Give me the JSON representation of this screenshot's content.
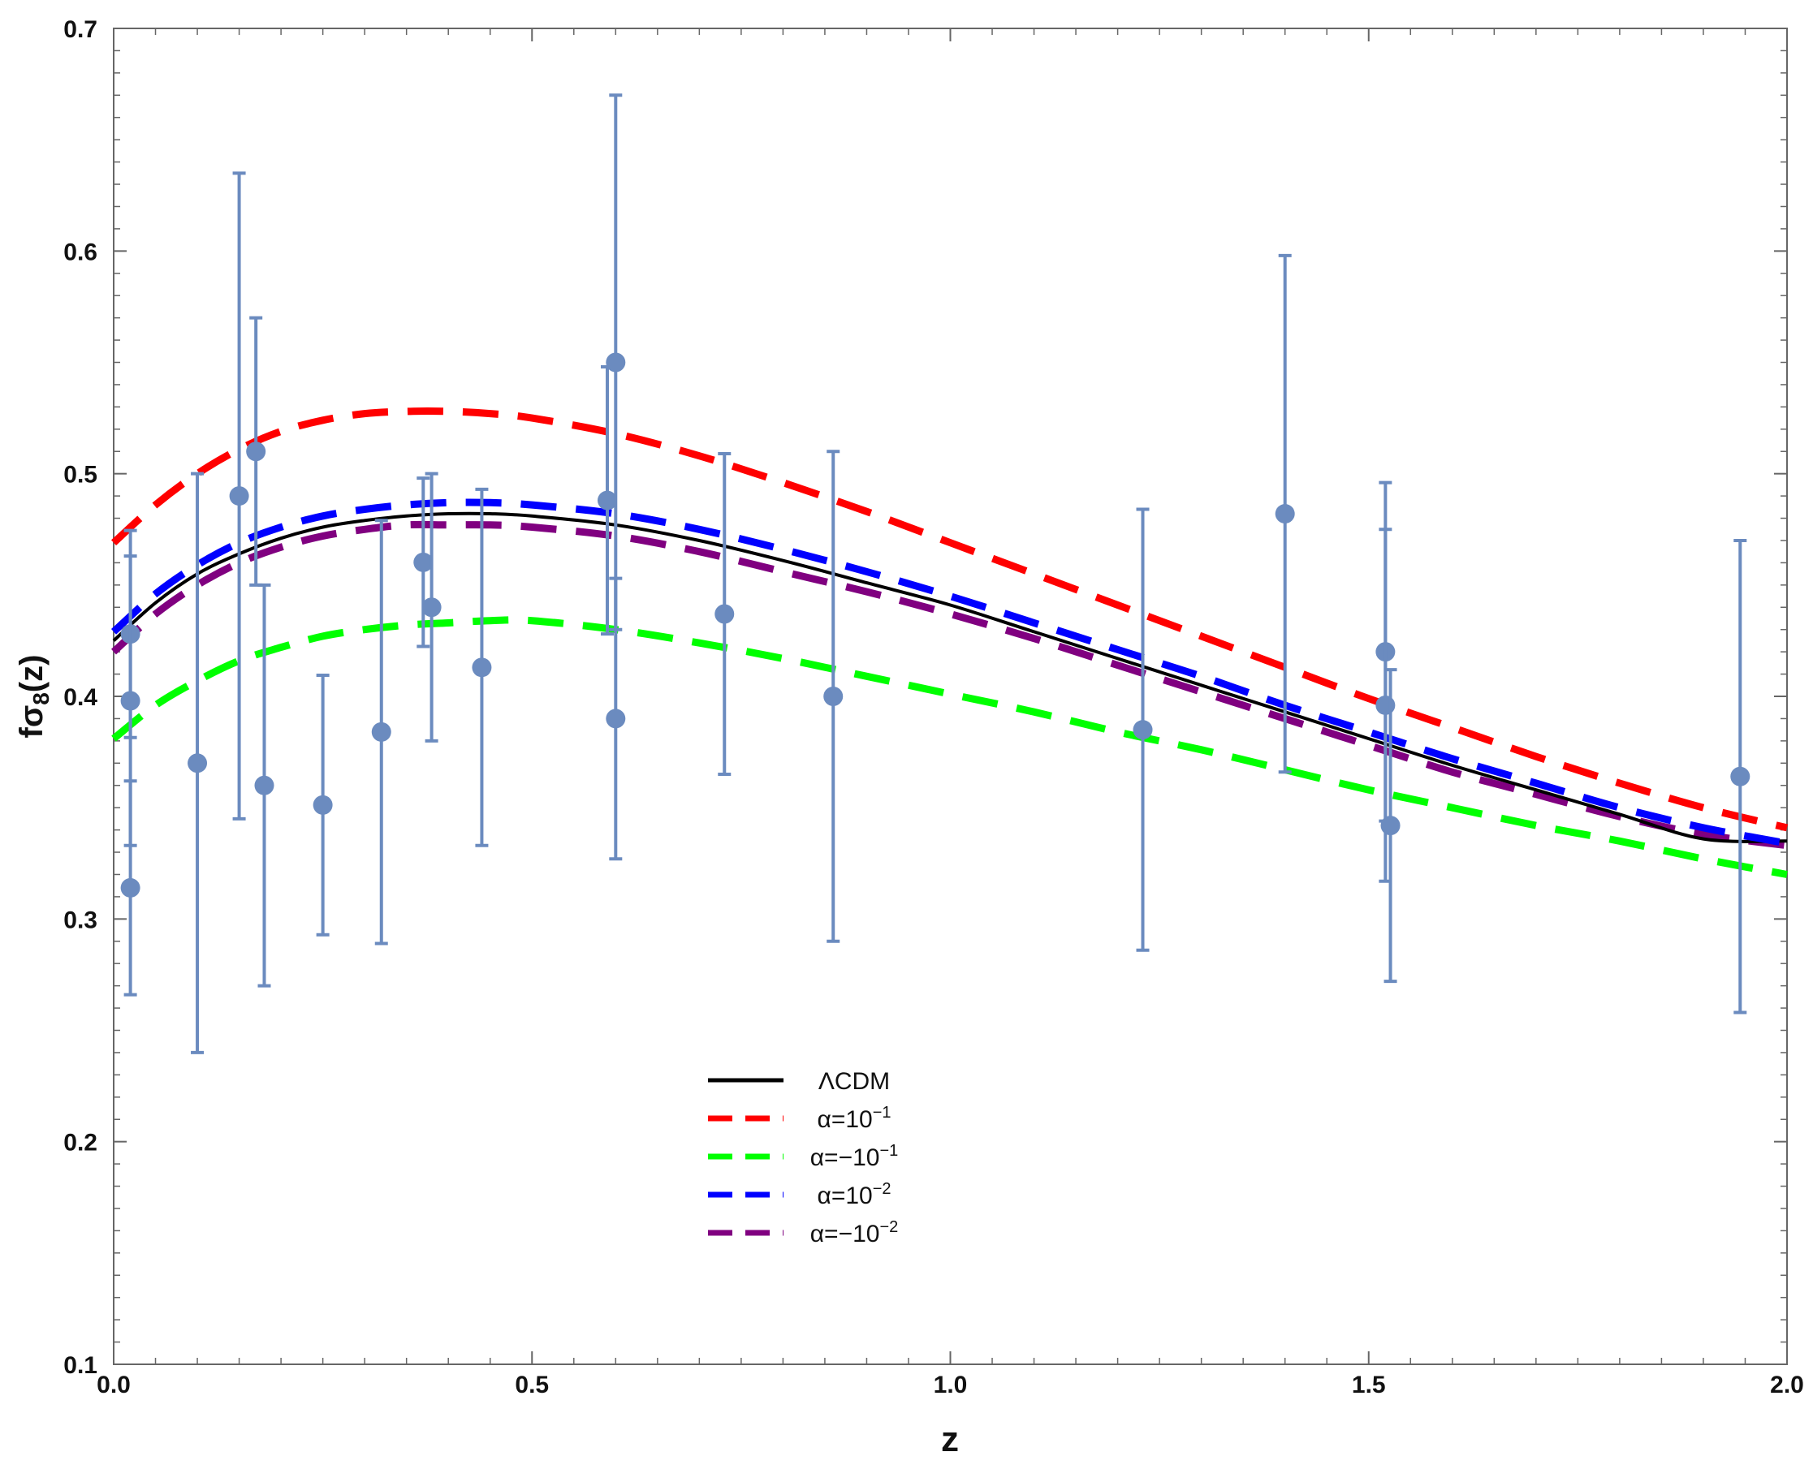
{
  "chart_data": {
    "type": "scatter",
    "title": "",
    "xlabel": "z",
    "ylabel": "fσ8(z)",
    "ylabel_parts": {
      "main": "fσ",
      "sub": "8",
      "tail": "(z)"
    },
    "xlim": [
      0.0,
      2.0
    ],
    "ylim": [
      0.1,
      0.7
    ],
    "x_ticks": [
      0.0,
      0.5,
      1.0,
      1.5,
      2.0
    ],
    "x_tick_labels": [
      "0.0",
      "0.5",
      "1.0",
      "1.5",
      "2.0"
    ],
    "y_ticks": [
      0.1,
      0.2,
      0.3,
      0.4,
      0.5,
      0.6,
      0.7
    ],
    "y_tick_labels": [
      "0.1",
      "0.2",
      "0.3",
      "0.4",
      "0.5",
      "0.6",
      "0.7"
    ],
    "grid": false,
    "legend_position": "lower-center",
    "data_points": {
      "name": "observations",
      "color": "#6b8bbf",
      "points": [
        {
          "z": 0.02,
          "value": 0.428,
          "err": 0.0465
        },
        {
          "z": 0.02,
          "value": 0.398,
          "err": 0.065
        },
        {
          "z": 0.02,
          "value": 0.314,
          "err": 0.048
        },
        {
          "z": 0.1,
          "value": 0.37,
          "err": 0.13
        },
        {
          "z": 0.15,
          "value": 0.49,
          "err": 0.145
        },
        {
          "z": 0.17,
          "value": 0.51,
          "err": 0.06
        },
        {
          "z": 0.18,
          "value": 0.36,
          "err": 0.09
        },
        {
          "z": 0.25,
          "value": 0.3512,
          "err": 0.0583
        },
        {
          "z": 0.32,
          "value": 0.384,
          "err": 0.095
        },
        {
          "z": 0.37,
          "value": 0.4602,
          "err": 0.0378
        },
        {
          "z": 0.38,
          "value": 0.44,
          "err": 0.06
        },
        {
          "z": 0.44,
          "value": 0.413,
          "err": 0.08
        },
        {
          "z": 0.59,
          "value": 0.488,
          "err": 0.06
        },
        {
          "z": 0.6,
          "value": 0.55,
          "err": 0.12
        },
        {
          "z": 0.6,
          "value": 0.39,
          "err": 0.063
        },
        {
          "z": 0.73,
          "value": 0.437,
          "err": 0.072
        },
        {
          "z": 0.86,
          "value": 0.4,
          "err": 0.11
        },
        {
          "z": 1.23,
          "value": 0.385,
          "err": 0.099
        },
        {
          "z": 1.4,
          "value": 0.482,
          "err": 0.116
        },
        {
          "z": 1.52,
          "value": 0.42,
          "err": 0.076
        },
        {
          "z": 1.52,
          "value": 0.396,
          "err": 0.079
        },
        {
          "z": 1.526,
          "value": 0.342,
          "err": 0.07
        },
        {
          "z": 1.944,
          "value": 0.364,
          "err": 0.106
        }
      ]
    },
    "series": [
      {
        "name": "ΛCDM",
        "label_main": "ΛCDM",
        "label_sup": "",
        "color": "#000000",
        "style": "solid",
        "x": [
          0.0,
          0.05,
          0.1,
          0.15,
          0.2,
          0.25,
          0.3,
          0.35,
          0.4,
          0.45,
          0.5,
          0.6,
          0.7,
          0.8,
          0.9,
          1.0,
          1.1,
          1.2,
          1.3,
          1.4,
          1.5,
          1.6,
          1.7,
          1.8,
          1.9,
          2.0
        ],
        "values": [
          0.425,
          0.442,
          0.455,
          0.464,
          0.471,
          0.476,
          0.479,
          0.481,
          0.482,
          0.482,
          0.481,
          0.477,
          0.47,
          0.461,
          0.451,
          0.441,
          0.429,
          0.417,
          0.405,
          0.393,
          0.381,
          0.369,
          0.358,
          0.347,
          0.336,
          0.335
        ]
      },
      {
        "name": "α=10⁻¹",
        "label_main": "α=10",
        "label_sup": "−1",
        "color": "#ff0000",
        "style": "dashed",
        "x": [
          0.0,
          0.05,
          0.1,
          0.15,
          0.2,
          0.25,
          0.3,
          0.35,
          0.4,
          0.45,
          0.5,
          0.6,
          0.7,
          0.8,
          0.9,
          1.0,
          1.1,
          1.2,
          1.3,
          1.4,
          1.5,
          1.6,
          1.7,
          1.8,
          1.9,
          2.0
        ],
        "values": [
          0.469,
          0.486,
          0.5,
          0.511,
          0.519,
          0.524,
          0.527,
          0.528,
          0.528,
          0.527,
          0.525,
          0.518,
          0.508,
          0.496,
          0.483,
          0.469,
          0.455,
          0.441,
          0.427,
          0.413,
          0.399,
          0.386,
          0.373,
          0.361,
          0.35,
          0.341
        ]
      },
      {
        "name": "α=−10⁻¹",
        "label_main": "α=−10",
        "label_sup": "−1",
        "color": "#00ff00",
        "style": "dashed",
        "x": [
          0.0,
          0.05,
          0.1,
          0.15,
          0.2,
          0.25,
          0.3,
          0.35,
          0.4,
          0.45,
          0.5,
          0.6,
          0.7,
          0.8,
          0.9,
          1.0,
          1.1,
          1.2,
          1.3,
          1.4,
          1.5,
          1.6,
          1.7,
          1.8,
          1.9,
          2.0
        ],
        "values": [
          0.381,
          0.396,
          0.407,
          0.416,
          0.422,
          0.427,
          0.43,
          0.432,
          0.433,
          0.434,
          0.434,
          0.43,
          0.424,
          0.417,
          0.409,
          0.401,
          0.393,
          0.384,
          0.376,
          0.367,
          0.358,
          0.35,
          0.342,
          0.335,
          0.327,
          0.32
        ]
      },
      {
        "name": "α=10⁻²",
        "label_main": "α=10",
        "label_sup": "−2",
        "color": "#0000ff",
        "style": "dashed",
        "x": [
          0.0,
          0.05,
          0.1,
          0.15,
          0.2,
          0.25,
          0.3,
          0.35,
          0.4,
          0.45,
          0.5,
          0.6,
          0.7,
          0.8,
          0.9,
          1.0,
          1.1,
          1.2,
          1.3,
          1.4,
          1.5,
          1.6,
          1.7,
          1.8,
          1.9,
          2.0
        ],
        "values": [
          0.429,
          0.446,
          0.459,
          0.469,
          0.476,
          0.481,
          0.484,
          0.486,
          0.487,
          0.487,
          0.486,
          0.482,
          0.475,
          0.466,
          0.456,
          0.445,
          0.433,
          0.421,
          0.409,
          0.396,
          0.384,
          0.372,
          0.361,
          0.35,
          0.341,
          0.334
        ]
      },
      {
        "name": "α=−10⁻²",
        "label_main": "α=−10",
        "label_sup": "−2",
        "color": "#800080",
        "style": "dashed",
        "x": [
          0.0,
          0.05,
          0.1,
          0.15,
          0.2,
          0.25,
          0.3,
          0.35,
          0.4,
          0.45,
          0.5,
          0.6,
          0.7,
          0.8,
          0.9,
          1.0,
          1.1,
          1.2,
          1.3,
          1.4,
          1.5,
          1.6,
          1.7,
          1.8,
          1.9,
          2.0
        ],
        "values": [
          0.42,
          0.437,
          0.45,
          0.46,
          0.467,
          0.472,
          0.475,
          0.477,
          0.477,
          0.477,
          0.476,
          0.472,
          0.465,
          0.456,
          0.447,
          0.437,
          0.426,
          0.414,
          0.402,
          0.39,
          0.378,
          0.366,
          0.356,
          0.346,
          0.338,
          0.333
        ]
      }
    ]
  }
}
